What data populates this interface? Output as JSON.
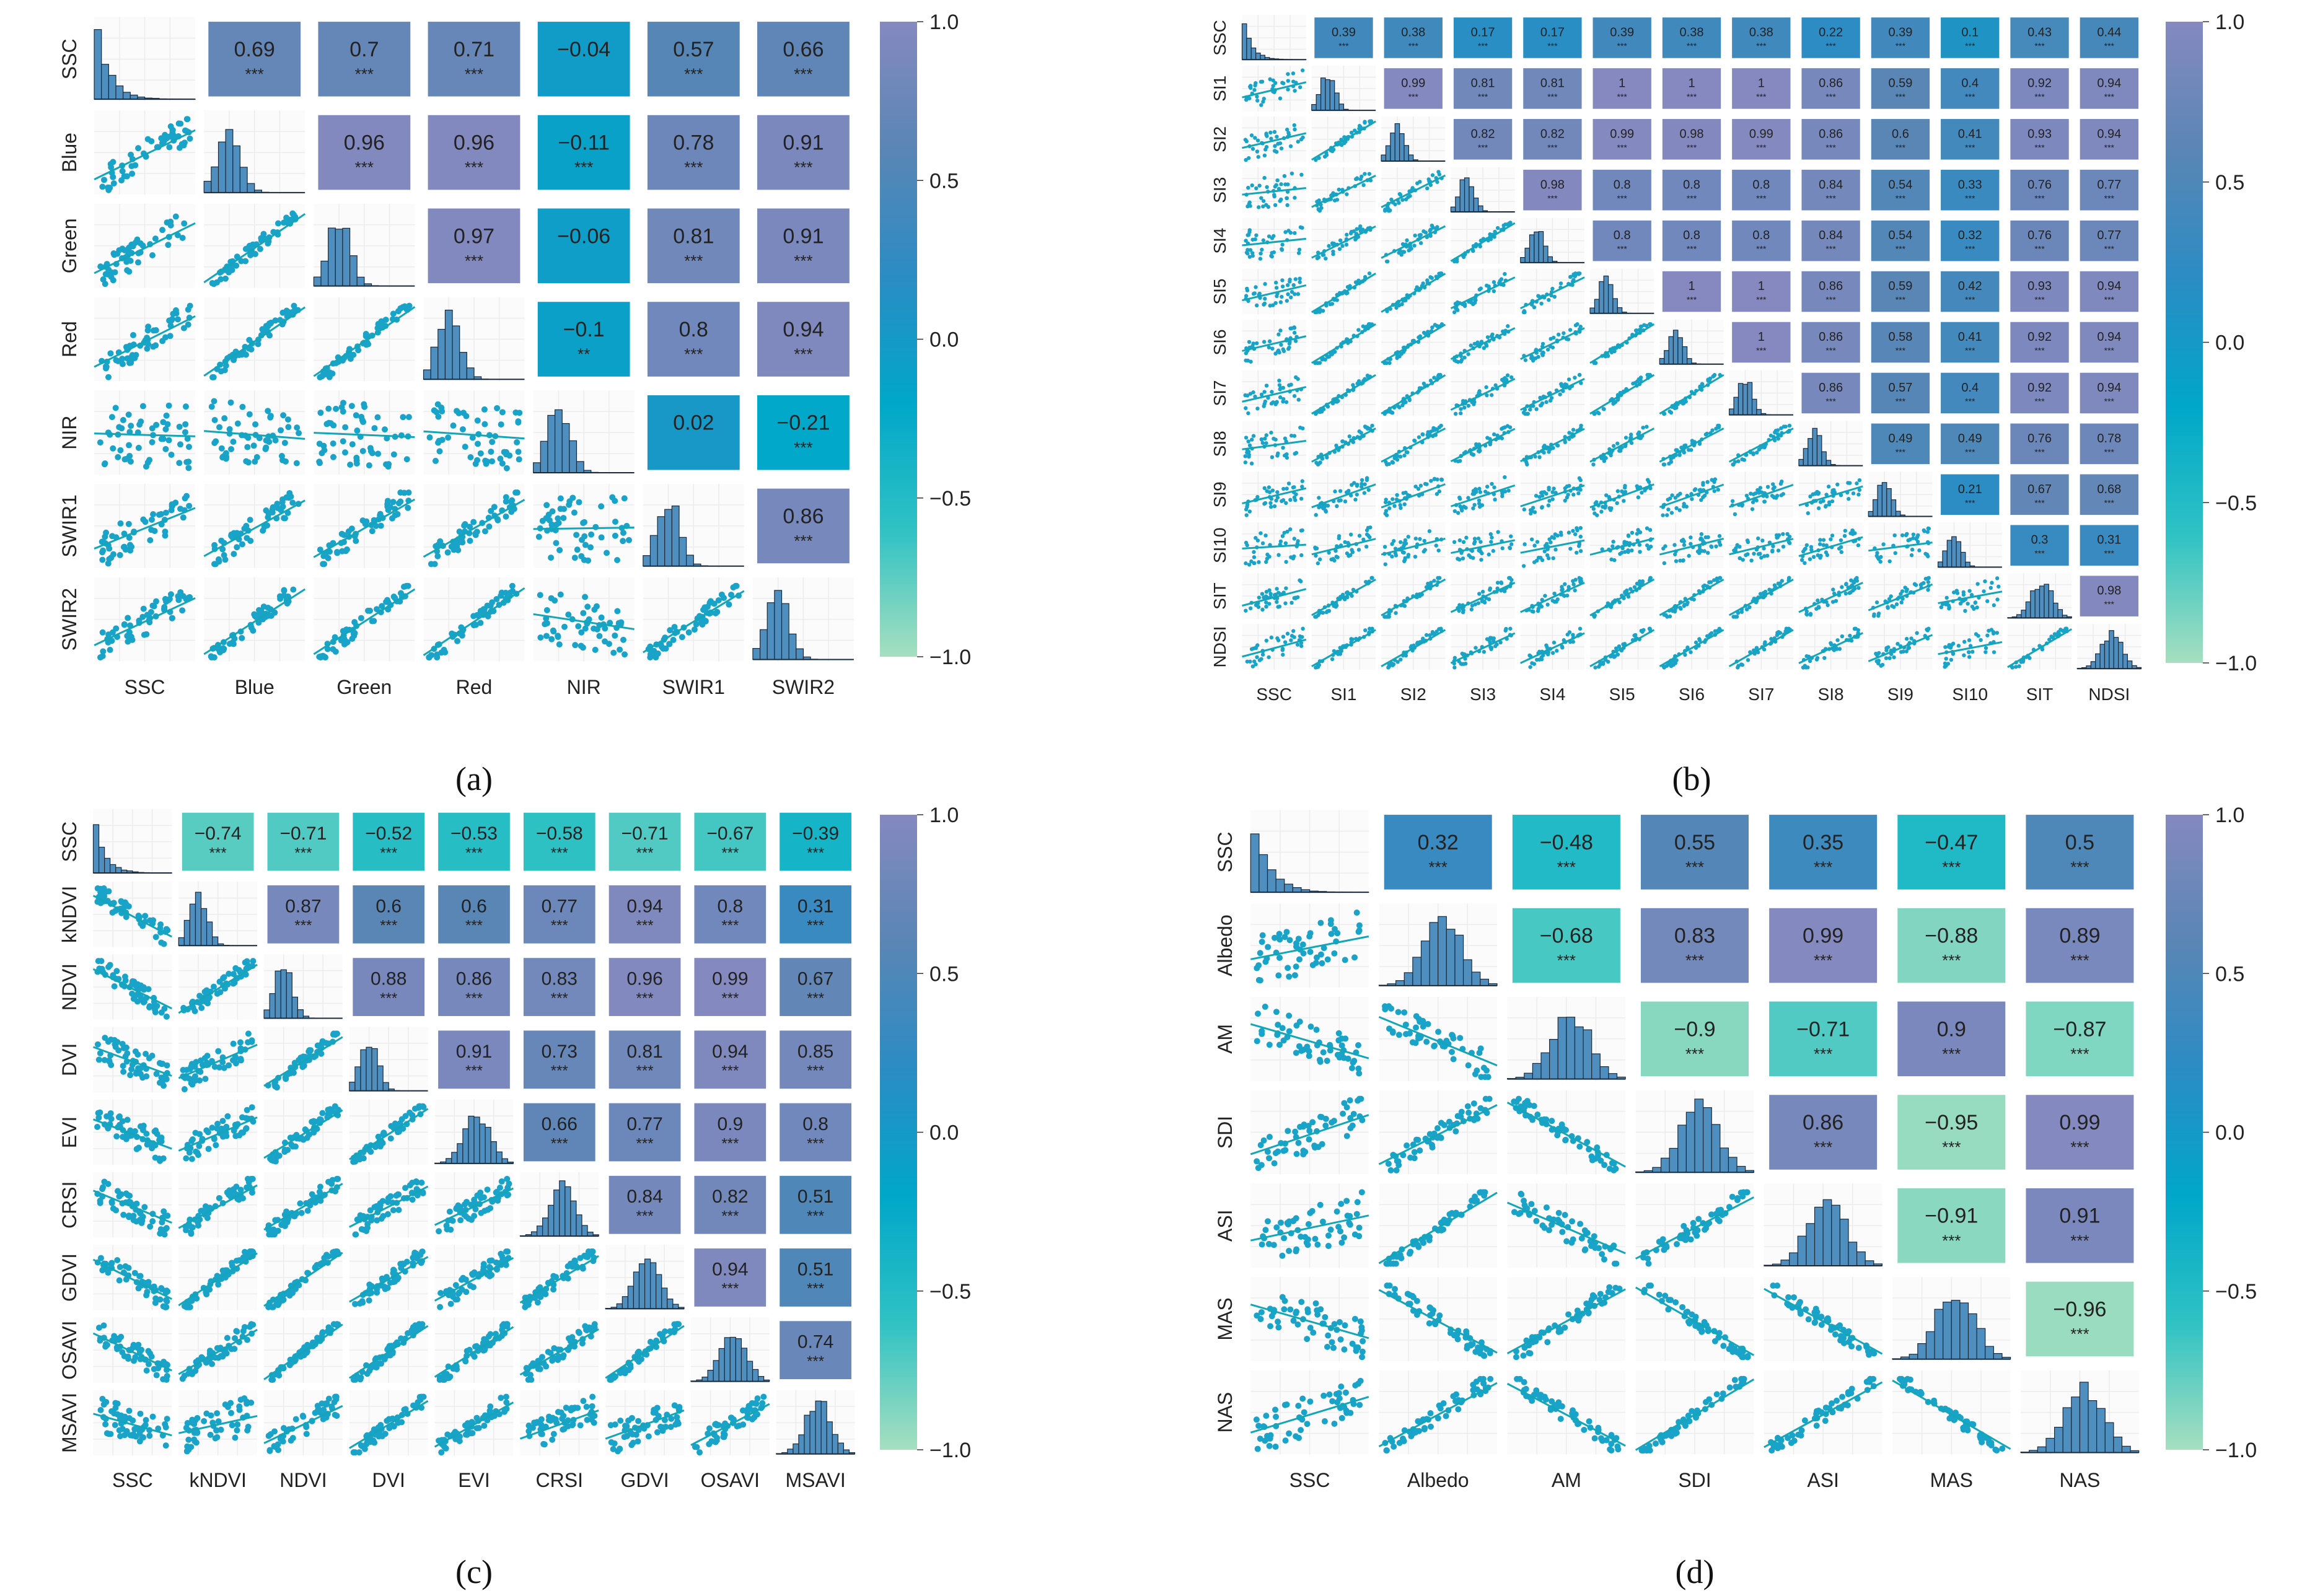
{
  "colorbar": {
    "ticks": [
      "1.0",
      "0.5",
      "0.0",
      "−0.5",
      "−1.0"
    ],
    "stops": [
      "#a6dfbf",
      "#2fc2c4",
      "#00a7c9",
      "#2b8cc4",
      "#5a86b5",
      "#8589c0"
    ]
  },
  "chart_data": [
    {
      "type": "heatmap",
      "panel": "a",
      "caption": "(a)",
      "variables": [
        "SSC",
        "Blue",
        "Green",
        "Red",
        "NIR",
        "SWIR1",
        "SWIR2"
      ],
      "correlations": [
        {
          "row": "SSC",
          "col": "Blue",
          "r": "0.69",
          "sig": "***"
        },
        {
          "row": "SSC",
          "col": "Green",
          "r": "0.7",
          "sig": "***"
        },
        {
          "row": "SSC",
          "col": "Red",
          "r": "0.71",
          "sig": "***"
        },
        {
          "row": "SSC",
          "col": "NIR",
          "r": "−0.04",
          "sig": ""
        },
        {
          "row": "SSC",
          "col": "SWIR1",
          "r": "0.57",
          "sig": "***"
        },
        {
          "row": "SSC",
          "col": "SWIR2",
          "r": "0.66",
          "sig": "***"
        },
        {
          "row": "Blue",
          "col": "Green",
          "r": "0.96",
          "sig": "***"
        },
        {
          "row": "Blue",
          "col": "Red",
          "r": "0.96",
          "sig": "***"
        },
        {
          "row": "Blue",
          "col": "NIR",
          "r": "−0.11",
          "sig": "***"
        },
        {
          "row": "Blue",
          "col": "SWIR1",
          "r": "0.78",
          "sig": "***"
        },
        {
          "row": "Blue",
          "col": "SWIR2",
          "r": "0.91",
          "sig": "***"
        },
        {
          "row": "Green",
          "col": "Red",
          "r": "0.97",
          "sig": "***"
        },
        {
          "row": "Green",
          "col": "NIR",
          "r": "−0.06",
          "sig": ""
        },
        {
          "row": "Green",
          "col": "SWIR1",
          "r": "0.81",
          "sig": "***"
        },
        {
          "row": "Green",
          "col": "SWIR2",
          "r": "0.91",
          "sig": "***"
        },
        {
          "row": "Red",
          "col": "NIR",
          "r": "−0.1",
          "sig": "**"
        },
        {
          "row": "Red",
          "col": "SWIR1",
          "r": "0.8",
          "sig": "***"
        },
        {
          "row": "Red",
          "col": "SWIR2",
          "r": "0.94",
          "sig": "***"
        },
        {
          "row": "NIR",
          "col": "SWIR1",
          "r": "0.02",
          "sig": ""
        },
        {
          "row": "NIR",
          "col": "SWIR2",
          "r": "−0.21",
          "sig": "***"
        },
        {
          "row": "SWIR1",
          "col": "SWIR2",
          "r": "0.86",
          "sig": "***"
        }
      ]
    },
    {
      "type": "heatmap",
      "panel": "b",
      "caption": "(b)",
      "variables": [
        "SSC",
        "SI1",
        "SI2",
        "SI3",
        "SI4",
        "SI5",
        "SI6",
        "SI7",
        "SI8",
        "SI9",
        "SI10",
        "SIT",
        "NDSI"
      ],
      "correlations": [
        {
          "row": "SSC",
          "col": "SI1",
          "r": "0.39",
          "sig": "***"
        },
        {
          "row": "SSC",
          "col": "SI2",
          "r": "0.38",
          "sig": "***"
        },
        {
          "row": "SSC",
          "col": "SI3",
          "r": "0.17",
          "sig": "***"
        },
        {
          "row": "SSC",
          "col": "SI4",
          "r": "0.17",
          "sig": "***"
        },
        {
          "row": "SSC",
          "col": "SI5",
          "r": "0.39",
          "sig": "***"
        },
        {
          "row": "SSC",
          "col": "SI6",
          "r": "0.38",
          "sig": "***"
        },
        {
          "row": "SSC",
          "col": "SI7",
          "r": "0.38",
          "sig": "***"
        },
        {
          "row": "SSC",
          "col": "SI8",
          "r": "0.22",
          "sig": "***"
        },
        {
          "row": "SSC",
          "col": "SI9",
          "r": "0.39",
          "sig": "***"
        },
        {
          "row": "SSC",
          "col": "SI10",
          "r": "0.1",
          "sig": "***"
        },
        {
          "row": "SSC",
          "col": "SIT",
          "r": "0.43",
          "sig": "***"
        },
        {
          "row": "SSC",
          "col": "NDSI",
          "r": "0.44",
          "sig": "***"
        },
        {
          "row": "SI1",
          "col": "SI2",
          "r": "0.99",
          "sig": "***"
        },
        {
          "row": "SI1",
          "col": "SI3",
          "r": "0.81",
          "sig": "***"
        },
        {
          "row": "SI1",
          "col": "SI4",
          "r": "0.81",
          "sig": "***"
        },
        {
          "row": "SI1",
          "col": "SI5",
          "r": "1",
          "sig": "***"
        },
        {
          "row": "SI1",
          "col": "SI6",
          "r": "1",
          "sig": "***"
        },
        {
          "row": "SI1",
          "col": "SI7",
          "r": "1",
          "sig": "***"
        },
        {
          "row": "SI1",
          "col": "SI8",
          "r": "0.86",
          "sig": "***"
        },
        {
          "row": "SI1",
          "col": "SI9",
          "r": "0.59",
          "sig": "***"
        },
        {
          "row": "SI1",
          "col": "SI10",
          "r": "0.4",
          "sig": "***"
        },
        {
          "row": "SI1",
          "col": "SIT",
          "r": "0.92",
          "sig": "***"
        },
        {
          "row": "SI1",
          "col": "NDSI",
          "r": "0.94",
          "sig": "***"
        },
        {
          "row": "SI2",
          "col": "SI3",
          "r": "0.82",
          "sig": "***"
        },
        {
          "row": "SI2",
          "col": "SI4",
          "r": "0.82",
          "sig": "***"
        },
        {
          "row": "SI2",
          "col": "SI5",
          "r": "0.99",
          "sig": "***"
        },
        {
          "row": "SI2",
          "col": "SI6",
          "r": "0.98",
          "sig": "***"
        },
        {
          "row": "SI2",
          "col": "SI7",
          "r": "0.99",
          "sig": "***"
        },
        {
          "row": "SI2",
          "col": "SI8",
          "r": "0.86",
          "sig": "***"
        },
        {
          "row": "SI2",
          "col": "SI9",
          "r": "0.6",
          "sig": "***"
        },
        {
          "row": "SI2",
          "col": "SI10",
          "r": "0.41",
          "sig": "***"
        },
        {
          "row": "SI2",
          "col": "SIT",
          "r": "0.93",
          "sig": "***"
        },
        {
          "row": "SI2",
          "col": "NDSI",
          "r": "0.94",
          "sig": "***"
        },
        {
          "row": "SI3",
          "col": "SI4",
          "r": "0.98",
          "sig": "***"
        },
        {
          "row": "SI3",
          "col": "SI5",
          "r": "0.8",
          "sig": "***"
        },
        {
          "row": "SI3",
          "col": "SI6",
          "r": "0.8",
          "sig": "***"
        },
        {
          "row": "SI3",
          "col": "SI7",
          "r": "0.8",
          "sig": "***"
        },
        {
          "row": "SI3",
          "col": "SI8",
          "r": "0.84",
          "sig": "***"
        },
        {
          "row": "SI3",
          "col": "SI9",
          "r": "0.54",
          "sig": "***"
        },
        {
          "row": "SI3",
          "col": "SI10",
          "r": "0.33",
          "sig": "***"
        },
        {
          "row": "SI3",
          "col": "SIT",
          "r": "0.76",
          "sig": "***"
        },
        {
          "row": "SI3",
          "col": "NDSI",
          "r": "0.77",
          "sig": "***"
        },
        {
          "row": "SI4",
          "col": "SI5",
          "r": "0.8",
          "sig": "***"
        },
        {
          "row": "SI4",
          "col": "SI6",
          "r": "0.8",
          "sig": "***"
        },
        {
          "row": "SI4",
          "col": "SI7",
          "r": "0.8",
          "sig": "***"
        },
        {
          "row": "SI4",
          "col": "SI8",
          "r": "0.84",
          "sig": "***"
        },
        {
          "row": "SI4",
          "col": "SI9",
          "r": "0.54",
          "sig": "***"
        },
        {
          "row": "SI4",
          "col": "SI10",
          "r": "0.32",
          "sig": "***"
        },
        {
          "row": "SI4",
          "col": "SIT",
          "r": "0.76",
          "sig": "***"
        },
        {
          "row": "SI4",
          "col": "NDSI",
          "r": "0.77",
          "sig": "***"
        },
        {
          "row": "SI5",
          "col": "SI6",
          "r": "1",
          "sig": "***"
        },
        {
          "row": "SI5",
          "col": "SI7",
          "r": "1",
          "sig": "***"
        },
        {
          "row": "SI5",
          "col": "SI8",
          "r": "0.86",
          "sig": "***"
        },
        {
          "row": "SI5",
          "col": "SI9",
          "r": "0.59",
          "sig": "***"
        },
        {
          "row": "SI5",
          "col": "SI10",
          "r": "0.42",
          "sig": "***"
        },
        {
          "row": "SI5",
          "col": "SIT",
          "r": "0.93",
          "sig": "***"
        },
        {
          "row": "SI5",
          "col": "NDSI",
          "r": "0.94",
          "sig": "***"
        },
        {
          "row": "SI6",
          "col": "SI7",
          "r": "1",
          "sig": "***"
        },
        {
          "row": "SI6",
          "col": "SI8",
          "r": "0.86",
          "sig": "***"
        },
        {
          "row": "SI6",
          "col": "SI9",
          "r": "0.58",
          "sig": "***"
        },
        {
          "row": "SI6",
          "col": "SI10",
          "r": "0.41",
          "sig": "***"
        },
        {
          "row": "SI6",
          "col": "SIT",
          "r": "0.92",
          "sig": "***"
        },
        {
          "row": "SI6",
          "col": "NDSI",
          "r": "0.94",
          "sig": "***"
        },
        {
          "row": "SI7",
          "col": "SI8",
          "r": "0.86",
          "sig": "***"
        },
        {
          "row": "SI7",
          "col": "SI9",
          "r": "0.57",
          "sig": "***"
        },
        {
          "row": "SI7",
          "col": "SI10",
          "r": "0.4",
          "sig": "***"
        },
        {
          "row": "SI7",
          "col": "SIT",
          "r": "0.92",
          "sig": "***"
        },
        {
          "row": "SI7",
          "col": "NDSI",
          "r": "0.94",
          "sig": "***"
        },
        {
          "row": "SI8",
          "col": "SI9",
          "r": "0.49",
          "sig": "***"
        },
        {
          "row": "SI8",
          "col": "SI10",
          "r": "0.49",
          "sig": "***"
        },
        {
          "row": "SI8",
          "col": "SIT",
          "r": "0.76",
          "sig": "***"
        },
        {
          "row": "SI8",
          "col": "NDSI",
          "r": "0.78",
          "sig": "***"
        },
        {
          "row": "SI9",
          "col": "SI10",
          "r": "0.21",
          "sig": "***"
        },
        {
          "row": "SI9",
          "col": "SIT",
          "r": "0.67",
          "sig": "***"
        },
        {
          "row": "SI9",
          "col": "NDSI",
          "r": "0.68",
          "sig": "***"
        },
        {
          "row": "SI10",
          "col": "SIT",
          "r": "0.3",
          "sig": "***"
        },
        {
          "row": "SI10",
          "col": "NDSI",
          "r": "0.31",
          "sig": "***"
        },
        {
          "row": "SIT",
          "col": "NDSI",
          "r": "0.98",
          "sig": "***"
        }
      ]
    },
    {
      "type": "heatmap",
      "panel": "c",
      "caption": "(c)",
      "variables": [
        "SSC",
        "kNDVI",
        "NDVI",
        "DVI",
        "EVI",
        "CRSI",
        "GDVI",
        "OSAVI",
        "MSAVI"
      ],
      "correlations": [
        {
          "row": "SSC",
          "col": "kNDVI",
          "r": "−0.74",
          "sig": "***"
        },
        {
          "row": "SSC",
          "col": "NDVI",
          "r": "−0.71",
          "sig": "***"
        },
        {
          "row": "SSC",
          "col": "DVI",
          "r": "−0.52",
          "sig": "***"
        },
        {
          "row": "SSC",
          "col": "EVI",
          "r": "−0.53",
          "sig": "***"
        },
        {
          "row": "SSC",
          "col": "CRSI",
          "r": "−0.58",
          "sig": "***"
        },
        {
          "row": "SSC",
          "col": "GDVI",
          "r": "−0.71",
          "sig": "***"
        },
        {
          "row": "SSC",
          "col": "OSAVI",
          "r": "−0.67",
          "sig": "***"
        },
        {
          "row": "SSC",
          "col": "MSAVI",
          "r": "−0.39",
          "sig": "***"
        },
        {
          "row": "kNDVI",
          "col": "NDVI",
          "r": "0.87",
          "sig": "***"
        },
        {
          "row": "kNDVI",
          "col": "DVI",
          "r": "0.6",
          "sig": "***"
        },
        {
          "row": "kNDVI",
          "col": "EVI",
          "r": "0.6",
          "sig": "***"
        },
        {
          "row": "kNDVI",
          "col": "CRSI",
          "r": "0.77",
          "sig": "***"
        },
        {
          "row": "kNDVI",
          "col": "GDVI",
          "r": "0.94",
          "sig": "***"
        },
        {
          "row": "kNDVI",
          "col": "OSAVI",
          "r": "0.8",
          "sig": "***"
        },
        {
          "row": "kNDVI",
          "col": "MSAVI",
          "r": "0.31",
          "sig": "***"
        },
        {
          "row": "NDVI",
          "col": "DVI",
          "r": "0.88",
          "sig": "***"
        },
        {
          "row": "NDVI",
          "col": "EVI",
          "r": "0.86",
          "sig": "***"
        },
        {
          "row": "NDVI",
          "col": "CRSI",
          "r": "0.83",
          "sig": "***"
        },
        {
          "row": "NDVI",
          "col": "GDVI",
          "r": "0.96",
          "sig": "***"
        },
        {
          "row": "NDVI",
          "col": "OSAVI",
          "r": "0.99",
          "sig": "***"
        },
        {
          "row": "NDVI",
          "col": "MSAVI",
          "r": "0.67",
          "sig": "***"
        },
        {
          "row": "DVI",
          "col": "EVI",
          "r": "0.91",
          "sig": "***"
        },
        {
          "row": "DVI",
          "col": "CRSI",
          "r": "0.73",
          "sig": "***"
        },
        {
          "row": "DVI",
          "col": "GDVI",
          "r": "0.81",
          "sig": "***"
        },
        {
          "row": "DVI",
          "col": "OSAVI",
          "r": "0.94",
          "sig": "***"
        },
        {
          "row": "DVI",
          "col": "MSAVI",
          "r": "0.85",
          "sig": "***"
        },
        {
          "row": "EVI",
          "col": "CRSI",
          "r": "0.66",
          "sig": "***"
        },
        {
          "row": "EVI",
          "col": "GDVI",
          "r": "0.77",
          "sig": "***"
        },
        {
          "row": "EVI",
          "col": "OSAVI",
          "r": "0.9",
          "sig": "***"
        },
        {
          "row": "EVI",
          "col": "MSAVI",
          "r": "0.8",
          "sig": "***"
        },
        {
          "row": "CRSI",
          "col": "GDVI",
          "r": "0.84",
          "sig": "***"
        },
        {
          "row": "CRSI",
          "col": "OSAVI",
          "r": "0.82",
          "sig": "***"
        },
        {
          "row": "CRSI",
          "col": "MSAVI",
          "r": "0.51",
          "sig": "***"
        },
        {
          "row": "GDVI",
          "col": "OSAVI",
          "r": "0.94",
          "sig": "***"
        },
        {
          "row": "GDVI",
          "col": "MSAVI",
          "r": "0.51",
          "sig": "***"
        },
        {
          "row": "OSAVI",
          "col": "MSAVI",
          "r": "0.74",
          "sig": "***"
        }
      ]
    },
    {
      "type": "heatmap",
      "panel": "d",
      "caption": "(d)",
      "variables": [
        "SSC",
        "Albedo",
        "AM",
        "SDI",
        "ASI",
        "MAS",
        "NAS"
      ],
      "correlations": [
        {
          "row": "SSC",
          "col": "Albedo",
          "r": "0.32",
          "sig": "***"
        },
        {
          "row": "SSC",
          "col": "AM",
          "r": "−0.48",
          "sig": "***"
        },
        {
          "row": "SSC",
          "col": "SDI",
          "r": "0.55",
          "sig": "***"
        },
        {
          "row": "SSC",
          "col": "ASI",
          "r": "0.35",
          "sig": "***"
        },
        {
          "row": "SSC",
          "col": "MAS",
          "r": "−0.47",
          "sig": "***"
        },
        {
          "row": "SSC",
          "col": "NAS",
          "r": "0.5",
          "sig": "***"
        },
        {
          "row": "Albedo",
          "col": "AM",
          "r": "−0.68",
          "sig": "***"
        },
        {
          "row": "Albedo",
          "col": "SDI",
          "r": "0.83",
          "sig": "***"
        },
        {
          "row": "Albedo",
          "col": "ASI",
          "r": "0.99",
          "sig": "***"
        },
        {
          "row": "Albedo",
          "col": "MAS",
          "r": "−0.88",
          "sig": "***"
        },
        {
          "row": "Albedo",
          "col": "NAS",
          "r": "0.89",
          "sig": "***"
        },
        {
          "row": "AM",
          "col": "SDI",
          "r": "−0.9",
          "sig": "***"
        },
        {
          "row": "AM",
          "col": "ASI",
          "r": "−0.71",
          "sig": "***"
        },
        {
          "row": "AM",
          "col": "MAS",
          "r": "0.9",
          "sig": "***"
        },
        {
          "row": "AM",
          "col": "NAS",
          "r": "−0.87",
          "sig": "***"
        },
        {
          "row": "SDI",
          "col": "ASI",
          "r": "0.86",
          "sig": "***"
        },
        {
          "row": "SDI",
          "col": "MAS",
          "r": "−0.95",
          "sig": "***"
        },
        {
          "row": "SDI",
          "col": "NAS",
          "r": "0.99",
          "sig": "***"
        },
        {
          "row": "ASI",
          "col": "MAS",
          "r": "−0.91",
          "sig": "***"
        },
        {
          "row": "ASI",
          "col": "NAS",
          "r": "0.91",
          "sig": "***"
        },
        {
          "row": "MAS",
          "col": "NAS",
          "r": "−0.96",
          "sig": "***"
        }
      ]
    }
  ]
}
